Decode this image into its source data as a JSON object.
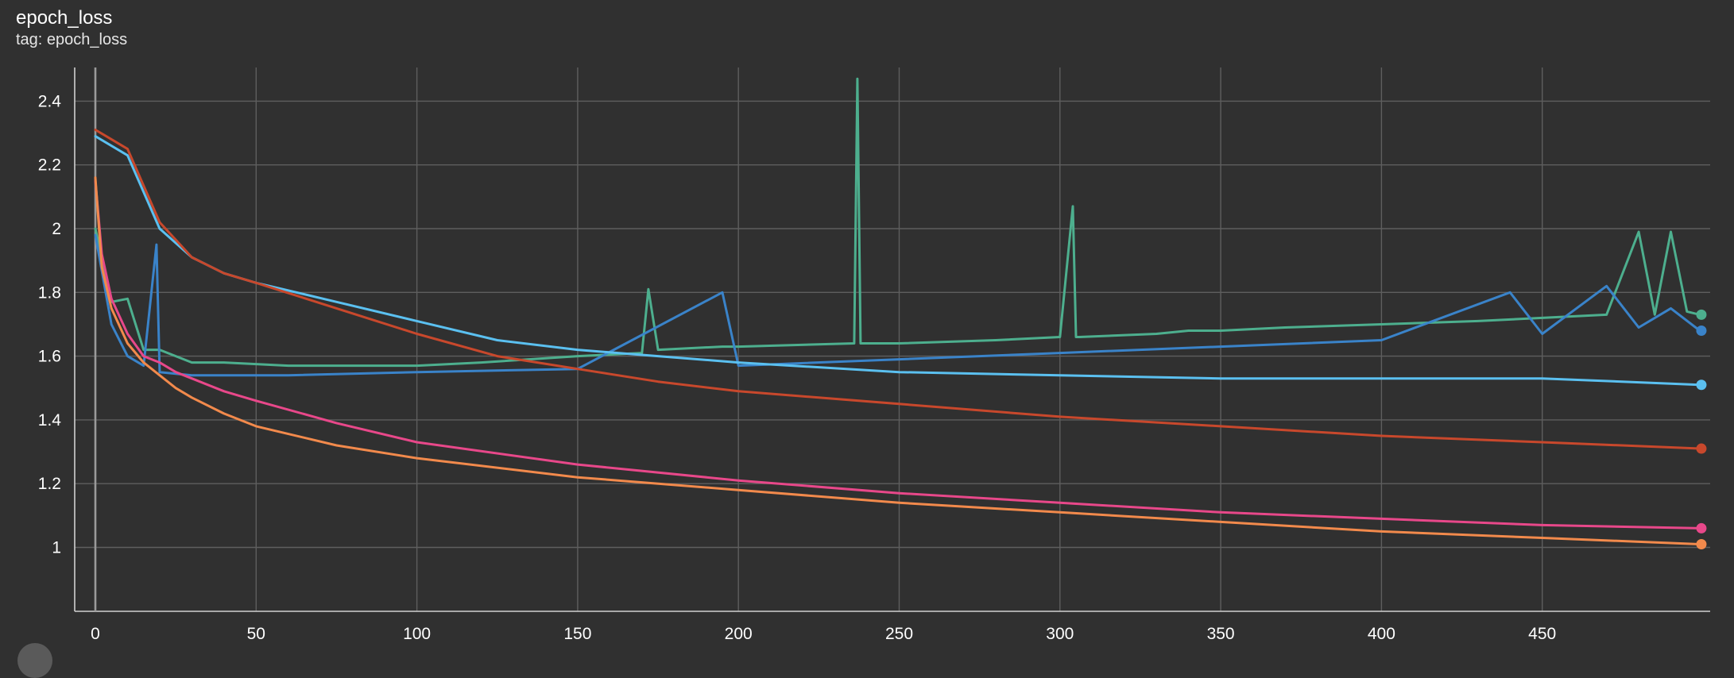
{
  "card": {
    "title": "epoch_loss",
    "tag": "tag: epoch_loss"
  },
  "chart_data": {
    "type": "line",
    "title": "epoch_loss",
    "subtitle": "tag: epoch_loss",
    "xlabel": "",
    "ylabel": "",
    "xlim": [
      0,
      500
    ],
    "ylim": [
      0.8,
      2.5
    ],
    "xticks": [
      0,
      50,
      100,
      150,
      200,
      250,
      300,
      350,
      400,
      450
    ],
    "yticks": [
      1,
      1.2,
      1.4,
      1.6,
      1.8,
      2,
      2.2,
      2.4
    ],
    "ytick_labels": [
      "1",
      "1.2",
      "1.4",
      "1.6",
      "1.8",
      "2",
      "2.2",
      "2.4"
    ],
    "grid": true,
    "series": [
      {
        "color": "#4daf8e",
        "x": [
          0,
          5,
          10,
          15,
          20,
          30,
          40,
          60,
          80,
          100,
          120,
          150,
          170,
          172,
          175,
          195,
          200,
          236,
          237,
          238,
          250,
          280,
          300,
          304,
          305,
          306,
          330,
          340,
          350,
          370,
          400,
          430,
          450,
          470,
          480,
          485,
          490,
          495,
          499
        ],
        "y": [
          2.0,
          1.77,
          1.78,
          1.62,
          1.62,
          1.58,
          1.58,
          1.57,
          1.57,
          1.57,
          1.58,
          1.6,
          1.61,
          1.81,
          1.62,
          1.63,
          1.63,
          1.64,
          2.47,
          1.64,
          1.64,
          1.65,
          1.66,
          2.07,
          1.66,
          1.66,
          1.67,
          1.68,
          1.68,
          1.69,
          1.7,
          1.71,
          1.72,
          1.73,
          1.99,
          1.73,
          1.99,
          1.74,
          1.73
        ]
      },
      {
        "color": "#3a83c9",
        "x": [
          0,
          5,
          10,
          15,
          19,
          20,
          30,
          60,
          100,
          150,
          195,
          200,
          250,
          300,
          350,
          400,
          440,
          450,
          470,
          480,
          490,
          499
        ],
        "y": [
          1.98,
          1.7,
          1.6,
          1.57,
          1.95,
          1.55,
          1.54,
          1.54,
          1.55,
          1.56,
          1.8,
          1.57,
          1.59,
          1.61,
          1.63,
          1.65,
          1.8,
          1.67,
          1.82,
          1.69,
          1.75,
          1.68
        ]
      },
      {
        "color": "#5bc0f0",
        "x": [
          0,
          10,
          20,
          30,
          40,
          50,
          75,
          100,
          125,
          150,
          175,
          200,
          250,
          300,
          350,
          400,
          450,
          499
        ],
        "y": [
          2.29,
          2.23,
          2.0,
          1.91,
          1.86,
          1.83,
          1.77,
          1.71,
          1.65,
          1.62,
          1.6,
          1.58,
          1.55,
          1.54,
          1.53,
          1.53,
          1.53,
          1.51
        ]
      },
      {
        "color": "#c8482c",
        "x": [
          0,
          10,
          20,
          30,
          40,
          50,
          75,
          100,
          125,
          150,
          175,
          200,
          250,
          300,
          350,
          400,
          450,
          499
        ],
        "y": [
          2.31,
          2.25,
          2.02,
          1.91,
          1.86,
          1.83,
          1.75,
          1.67,
          1.6,
          1.56,
          1.52,
          1.49,
          1.45,
          1.41,
          1.38,
          1.35,
          1.33,
          1.31
        ]
      },
      {
        "color": "#e8488a",
        "x": [
          0,
          2,
          5,
          10,
          15,
          20,
          25,
          30,
          40,
          50,
          75,
          100,
          150,
          200,
          250,
          300,
          350,
          400,
          450,
          499
        ],
        "y": [
          2.15,
          1.92,
          1.78,
          1.67,
          1.6,
          1.58,
          1.55,
          1.53,
          1.49,
          1.46,
          1.39,
          1.33,
          1.26,
          1.21,
          1.17,
          1.14,
          1.11,
          1.09,
          1.07,
          1.06
        ]
      },
      {
        "color": "#f28a4c",
        "x": [
          0,
          2,
          5,
          10,
          15,
          20,
          25,
          30,
          40,
          50,
          75,
          100,
          150,
          200,
          250,
          300,
          350,
          400,
          450,
          499
        ],
        "y": [
          2.16,
          1.88,
          1.75,
          1.64,
          1.58,
          1.54,
          1.5,
          1.47,
          1.42,
          1.38,
          1.32,
          1.28,
          1.22,
          1.18,
          1.14,
          1.11,
          1.08,
          1.05,
          1.03,
          1.01
        ]
      }
    ]
  }
}
